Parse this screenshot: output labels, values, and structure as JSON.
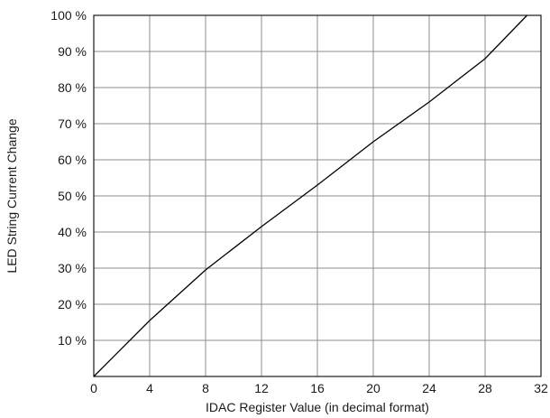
{
  "chart_data": {
    "type": "line",
    "title": "",
    "xlabel": "IDAC Register Value (in decimal format)",
    "ylabel": "LED String Current Change",
    "xlim": [
      0,
      32
    ],
    "ylim": [
      0,
      100
    ],
    "x_ticks": [
      0,
      4,
      8,
      12,
      16,
      20,
      24,
      28,
      32
    ],
    "x_tick_labels": [
      "0",
      "4",
      "8",
      "12",
      "16",
      "20",
      "24",
      "28",
      "32"
    ],
    "y_ticks": [
      10,
      20,
      30,
      40,
      50,
      60,
      70,
      80,
      90,
      100
    ],
    "y_tick_labels": [
      "10 %",
      "20 %",
      "30 %",
      "40 %",
      "50 %",
      "60 %",
      "70 %",
      "80 %",
      "90 %",
      "100 %"
    ],
    "grid": true,
    "legend": "none",
    "series": [
      {
        "x": [
          0,
          4,
          8,
          12,
          16,
          20,
          24,
          28,
          31
        ],
        "y": [
          0,
          15.5,
          29.5,
          41.5,
          53,
          65,
          76,
          88,
          100
        ]
      }
    ]
  }
}
